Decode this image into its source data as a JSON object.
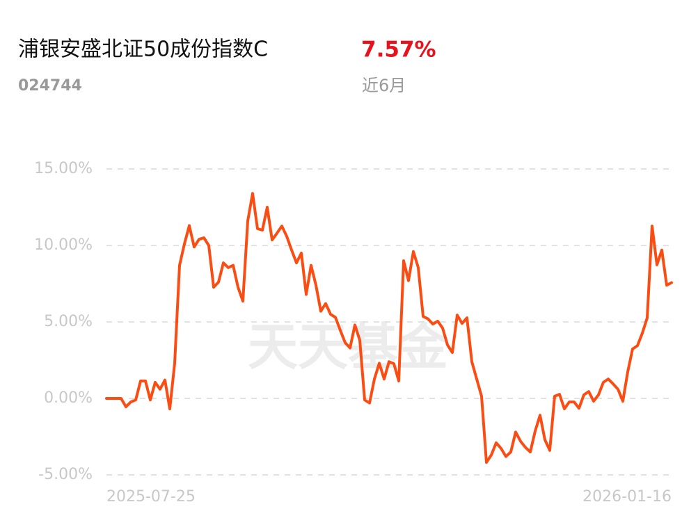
{
  "header": {
    "title": "浦银安盛北证50成份指数C",
    "code": "024744",
    "return": "7.57%",
    "period": "近6月"
  },
  "watermark": "天天基金",
  "chart_data": {
    "type": "line",
    "categories": [
      "2025-07-25",
      null,
      null,
      null,
      null,
      null,
      null,
      null,
      null,
      null,
      null,
      null,
      null,
      null,
      null,
      null,
      null,
      null,
      null,
      null,
      null,
      null,
      null,
      null,
      null,
      null,
      null,
      null,
      null,
      null,
      null,
      null,
      null,
      null,
      null,
      null,
      null,
      null,
      null,
      null,
      null,
      null,
      null,
      null,
      null,
      null,
      null,
      null,
      null,
      null,
      null,
      null,
      null,
      null,
      null,
      null,
      null,
      null,
      null,
      null,
      null,
      null,
      null,
      null,
      null,
      null,
      null,
      null,
      null,
      null,
      null,
      null,
      null,
      null,
      null,
      null,
      null,
      null,
      null,
      null,
      null,
      null,
      null,
      null,
      null,
      null,
      null,
      null,
      null,
      null,
      null,
      null,
      null,
      null,
      null,
      null,
      null,
      null,
      null,
      null,
      null,
      null,
      null,
      null,
      null,
      null,
      null,
      null,
      null,
      null,
      null,
      null,
      null,
      null,
      null,
      null,
      "2026-01-16"
    ],
    "values": [
      0,
      0,
      0,
      0,
      -0.55,
      -0.23,
      -0.1,
      1.14,
      1.14,
      -0.1,
      1.05,
      0.6,
      1.2,
      -0.68,
      2.3,
      8.7,
      10.1,
      11.3,
      9.9,
      10.4,
      10.5,
      10.0,
      7.27,
      7.6,
      8.86,
      8.55,
      8.7,
      7.27,
      6.36,
      11.6,
      13.4,
      11.1,
      11.0,
      12.5,
      10.36,
      10.8,
      11.27,
      10.6,
      9.7,
      8.86,
      9.5,
      6.8,
      8.7,
      7.4,
      5.7,
      6.2,
      5.5,
      5.3,
      4.45,
      3.64,
      3.3,
      4.8,
      3.8,
      -0.1,
      -0.3,
      1.27,
      2.3,
      1.27,
      2.4,
      2.27,
      1.14,
      9.0,
      7.7,
      9.6,
      8.55,
      5.36,
      5.2,
      4.86,
      5.05,
      4.6,
      3.5,
      3.0,
      5.45,
      4.9,
      5.27,
      2.4,
      1.27,
      0.14,
      -4.18,
      -3.7,
      -2.9,
      -3.27,
      -3.8,
      -3.5,
      -2.2,
      -2.8,
      -3.2,
      -3.5,
      -2.14,
      -1.1,
      -2.7,
      -3.4,
      0.14,
      0.27,
      -0.68,
      -0.23,
      -0.23,
      -0.64,
      0.23,
      0.45,
      -0.18,
      0.23,
      1.05,
      1.27,
      0.95,
      0.6,
      -0.18,
      1.73,
      3.23,
      3.45,
      4.27,
      5.27,
      11.27,
      8.73,
      9.7,
      7.4,
      7.57
    ],
    "color": "#fa4d14",
    "ylim": [
      -5,
      15
    ],
    "yticks": [
      {
        "value": -5,
        "label": "-5.00%"
      },
      {
        "value": 0,
        "label": "0.00%"
      },
      {
        "value": 5,
        "label": "5.00%"
      },
      {
        "value": 10,
        "label": "10.00%"
      },
      {
        "value": 15,
        "label": "15.00%"
      }
    ],
    "grid": true
  }
}
